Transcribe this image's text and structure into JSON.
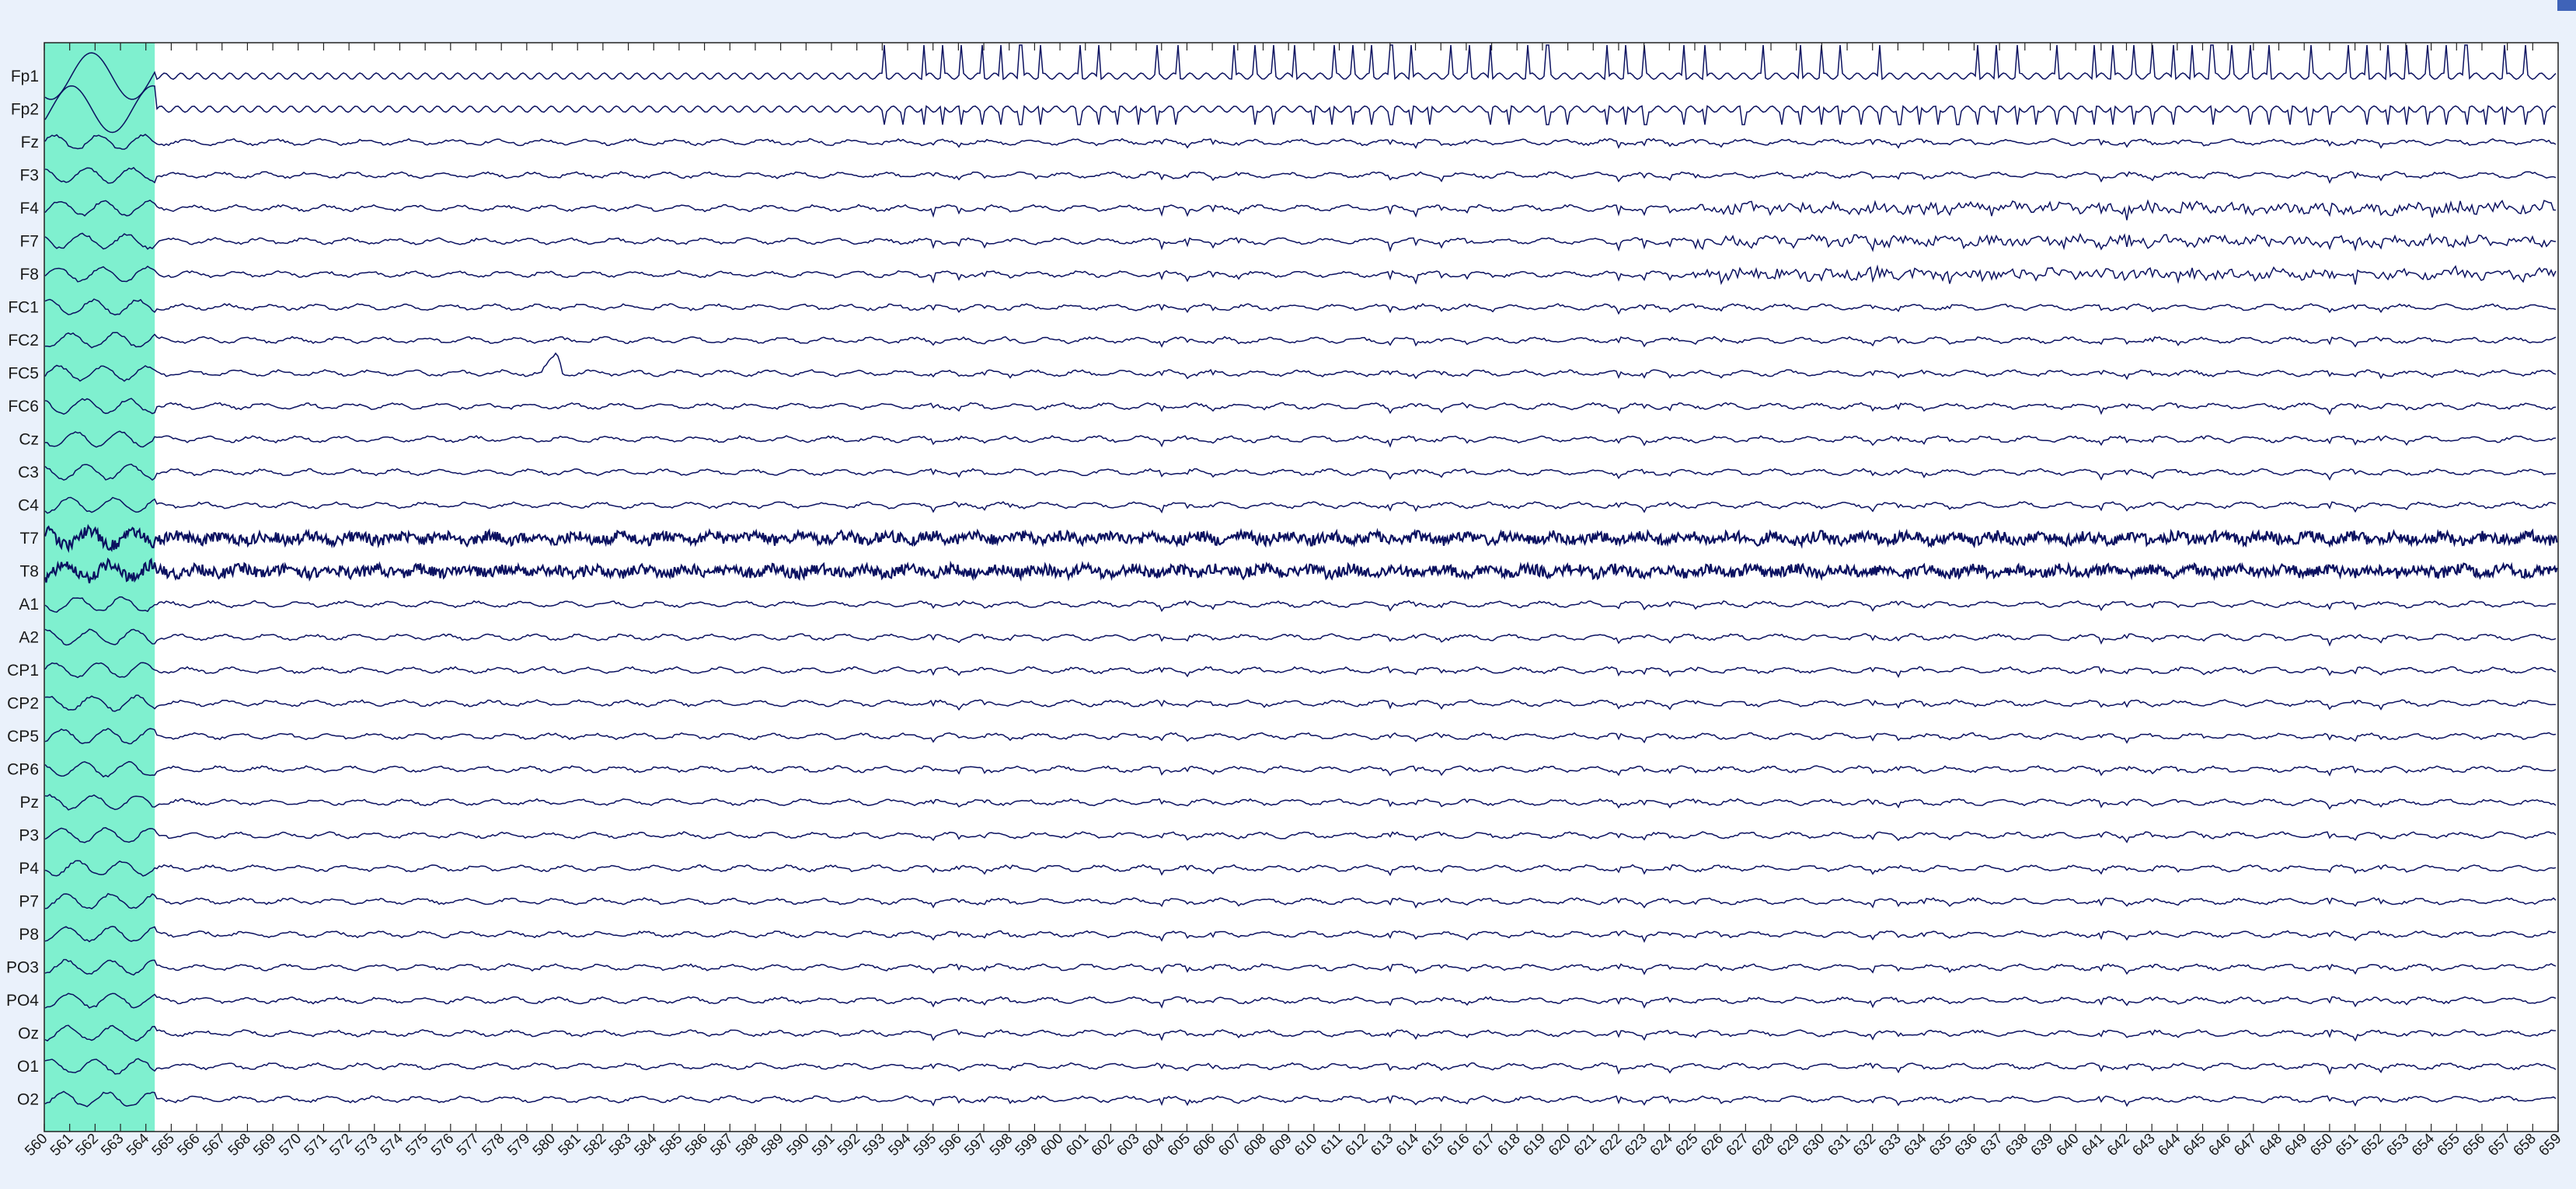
{
  "viewer": {
    "title": "",
    "colors": {
      "background": "#eaf1fb",
      "plot_background": "#ffffff",
      "trace": "#0b1160",
      "selection": "#7ff0cf",
      "axis": "#222222"
    }
  },
  "channels": [
    "Fp1",
    "Fp2",
    "Fz",
    "F3",
    "F4",
    "F7",
    "F8",
    "FC1",
    "FC2",
    "FC5",
    "FC6",
    "Cz",
    "C3",
    "C4",
    "T7",
    "T8",
    "A1",
    "A2",
    "CP1",
    "CP2",
    "CP5",
    "CP6",
    "Pz",
    "P3",
    "P4",
    "P7",
    "P8",
    "PO3",
    "PO4",
    "Oz",
    "O1",
    "O2"
  ],
  "time_axis": {
    "start": 560,
    "end": 659,
    "unit": "s",
    "labels": [
      "560",
      "561",
      "562",
      "563",
      "564",
      "565",
      "566",
      "567",
      "568",
      "569",
      "570",
      "571",
      "572",
      "573",
      "574",
      "575",
      "576",
      "577",
      "578",
      "579",
      "580",
      "581",
      "582",
      "583",
      "584",
      "585",
      "586",
      "587",
      "588",
      "589",
      "590",
      "591",
      "592",
      "593",
      "594",
      "595",
      "596",
      "597",
      "598",
      "599",
      "600",
      "601",
      "602",
      "603",
      "604",
      "605",
      "606",
      "607",
      "608",
      "609",
      "610",
      "611",
      "612",
      "613",
      "614",
      "615",
      "616",
      "617",
      "618",
      "619",
      "620",
      "621",
      "622",
      "623",
      "624",
      "625",
      "626",
      "627",
      "628",
      "629",
      "630",
      "631",
      "632",
      "633",
      "634",
      "635",
      "636",
      "637",
      "638",
      "639",
      "640",
      "641",
      "642",
      "643",
      "644",
      "645",
      "646",
      "647",
      "648",
      "649",
      "650",
      "651",
      "652",
      "653",
      "654",
      "655",
      "656",
      "657",
      "658",
      "659"
    ]
  },
  "selection": {
    "start": 560,
    "end": 564.35
  },
  "corner_button": {
    "icon": "window-control-icon",
    "color": "#3f63b8"
  }
}
